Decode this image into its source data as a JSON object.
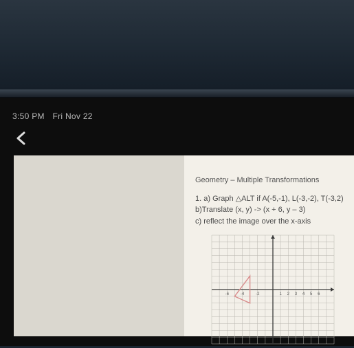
{
  "status": {
    "time": "3:50 PM",
    "date": "Fri Nov 22"
  },
  "document": {
    "title": "Geometry – Multiple Transformations",
    "lines": {
      "a": "1. a) Graph △ALT if A(-5,-1), L(-3,-2), T(-3,2)",
      "b": "b)Translate (x, y) -> (x + 6, y – 3)",
      "c": "c) reflect the image over the x-axis"
    }
  },
  "chart": {
    "type": "scatter",
    "xlim": [
      -8,
      8
    ],
    "ylim": [
      -8,
      8
    ],
    "tick_step": 1,
    "grid_color": "#b8b6af",
    "axis_color": "#3a3a3a",
    "background_color": "#f3f0e9",
    "triangle": {
      "points": [
        [
          -5,
          -1
        ],
        [
          -3,
          -2
        ],
        [
          -3,
          2
        ]
      ],
      "stroke": "#d98c8c",
      "stroke_width": 1.4,
      "fill": "none"
    },
    "axis_label_color": "#555",
    "axis_label_fontsize": 6
  },
  "colors": {
    "device_body": "#1a2530",
    "screen_bg": "#0d0d0d",
    "status_text": "#b8b8b8",
    "page_left": "#dad7cf",
    "page_right": "#f3f0e9"
  }
}
